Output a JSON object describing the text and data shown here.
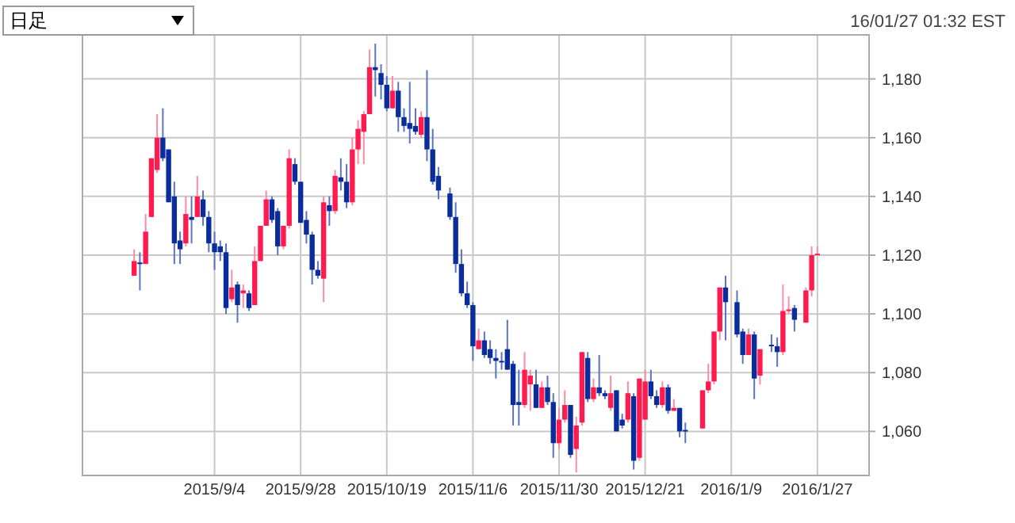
{
  "chart_data": {
    "type": "candlestick",
    "annotations": [
      "日足",
      "16/01/27 01:32 EST"
    ],
    "categories": [
      null,
      null,
      null,
      null,
      null,
      null,
      null,
      null,
      null,
      null,
      null,
      null,
      null,
      null,
      "2015/9/4",
      null,
      null,
      null,
      null,
      null,
      null,
      null,
      null,
      null,
      null,
      null,
      null,
      null,
      null,
      "2015/9/28",
      null,
      null,
      null,
      null,
      null,
      null,
      null,
      null,
      null,
      null,
      null,
      null,
      null,
      null,
      "2015/10/19",
      null,
      null,
      null,
      null,
      null,
      null,
      null,
      null,
      null,
      null,
      null,
      null,
      null,
      null,
      "2015/11/6",
      null,
      null,
      null,
      null,
      null,
      null,
      null,
      null,
      null,
      null,
      null,
      null,
      null,
      null,
      "2015/11/30",
      null,
      null,
      null,
      null,
      null,
      null,
      null,
      null,
      null,
      null,
      null,
      null,
      null,
      null,
      "2015/12/21",
      null,
      null,
      null,
      null,
      null,
      null,
      null,
      null,
      null,
      null,
      null,
      null,
      null,
      null,
      "2016/1/9",
      null,
      null,
      null,
      null,
      null,
      null,
      null,
      null,
      null,
      null,
      null,
      null,
      null,
      null,
      "2016/1/27"
    ],
    "ohlc": [
      [
        1113,
        1122,
        1113,
        1118
      ],
      [
        1117.5,
        1121,
        1108,
        1117
      ],
      [
        1117,
        1134,
        1117,
        1128
      ],
      [
        1133,
        1153,
        1133,
        1153
      ],
      [
        1149,
        1168,
        1148,
        1160
      ],
      [
        1160,
        1170,
        1152,
        1153
      ],
      [
        1156,
        1156,
        1138,
        1138
      ],
      [
        1140,
        1145,
        1117,
        1124
      ],
      [
        1125,
        1128,
        1117,
        1122
      ],
      [
        1124,
        1140,
        1123,
        1134
      ],
      [
        1133,
        1140,
        1124,
        1132
      ],
      [
        1133,
        1147,
        1133,
        1140
      ],
      [
        1139,
        1142,
        1130,
        1133
      ],
      [
        1133,
        1135,
        1121,
        1124
      ],
      [
        1124,
        1128,
        1115,
        1121
      ],
      [
        1123,
        1125,
        1118,
        1121
      ],
      [
        1121,
        1124,
        1100,
        1102
      ],
      [
        1105,
        1115,
        1104,
        1109
      ],
      [
        1110,
        1111,
        1097,
        1103
      ],
      [
        1107,
        1110,
        1102,
        1108
      ],
      [
        1107,
        1108,
        1101,
        1102
      ],
      [
        1103,
        1123,
        1103,
        1118
      ],
      [
        1118,
        1130,
        1118,
        1130
      ],
      [
        1130,
        1142,
        1130,
        1139
      ],
      [
        1139,
        1140,
        1131,
        1132
      ],
      [
        1135,
        1136,
        1120,
        1123
      ],
      [
        1123,
        1130,
        1122,
        1130
      ],
      [
        1130,
        1156,
        1129,
        1153
      ],
      [
        1151,
        1153,
        1144,
        1145
      ],
      [
        1145,
        1145,
        1131,
        1131
      ],
      [
        1132,
        1135,
        1124,
        1127
      ],
      [
        1127,
        1128,
        1110,
        1115
      ],
      [
        1115,
        1118,
        1112,
        1113
      ],
      [
        1112,
        1140,
        1104,
        1138
      ],
      [
        1137,
        1140,
        1130,
        1135
      ],
      [
        1135,
        1149,
        1134,
        1147
      ],
      [
        1146.5,
        1153,
        1142,
        1145
      ],
      [
        1145,
        1151,
        1136,
        1138
      ],
      [
        1138,
        1160,
        1137,
        1156
      ],
      [
        1156,
        1166,
        1151,
        1163
      ],
      [
        1162,
        1169,
        1151,
        1168
      ],
      [
        1168,
        1190,
        1168,
        1184
      ],
      [
        1184,
        1192,
        1174,
        1183
      ],
      [
        1182,
        1185,
        1173,
        1178
      ],
      [
        1178,
        1181,
        1169,
        1170
      ],
      [
        1170,
        1181,
        1170,
        1176
      ],
      [
        1176,
        1179,
        1162,
        1167
      ],
      [
        1167,
        1170,
        1162,
        1164
      ],
      [
        1165,
        1179,
        1158,
        1163
      ],
      [
        1164,
        1170,
        1161,
        1162
      ],
      [
        1161,
        1169,
        1160,
        1167
      ],
      [
        1167,
        1183,
        1152,
        1156
      ],
      [
        1156,
        1163,
        1144,
        1145
      ],
      [
        1147,
        1150,
        1139,
        1142
      ],
      null,
      [
        1141,
        1143,
        1132,
        1133
      ],
      [
        1133,
        1138,
        1114,
        1117
      ],
      [
        1117,
        1122,
        1106,
        1107
      ],
      [
        1107,
        1111,
        1102,
        1103
      ],
      [
        1103,
        1104,
        1084,
        1089
      ],
      [
        1088,
        1095,
        1088,
        1091
      ],
      [
        1091,
        1094,
        1085,
        1086
      ],
      [
        1088,
        1091,
        1083,
        1085
      ],
      [
        1085,
        1088,
        1078,
        1084
      ],
      [
        1084,
        1087,
        1081,
        1083.5
      ],
      [
        1088,
        1098,
        1081,
        1081
      ],
      [
        1083,
        1084,
        1062,
        1069
      ],
      [
        1070,
        1081,
        1062,
        1069
      ],
      [
        1069,
        1087,
        1068,
        1081
      ],
      [
        1076,
        1081,
        1067,
        1079
      ],
      [
        1076,
        1081,
        1068,
        1068
      ],
      [
        1068,
        1077,
        1068,
        1075
      ],
      [
        1075,
        1079,
        1069,
        1070
      ],
      [
        1070,
        1073,
        1051,
        1056
      ],
      [
        1056,
        1068,
        1054,
        1064
      ],
      [
        1064,
        1074,
        1063,
        1069
      ],
      [
        1069,
        1069,
        1051,
        1052
      ],
      [
        1054,
        1065,
        1046,
        1062
      ],
      [
        1063,
        1087,
        1062,
        1087
      ],
      [
        1085,
        1087,
        1070,
        1071
      ],
      [
        1071,
        1078,
        1070,
        1075
      ],
      [
        1075,
        1086,
        1072,
        1073
      ],
      [
        1073,
        1074,
        1071,
        1072
      ],
      [
        1068,
        1079,
        1067,
        1073
      ],
      [
        1074,
        1074,
        1060,
        1060
      ],
      [
        1064,
        1066,
        1061,
        1062
      ],
      [
        1064,
        1077,
        1063,
        1073
      ],
      [
        1072,
        1073,
        1047,
        1050
      ],
      [
        1051,
        1078,
        1050,
        1078
      ],
      [
        1064,
        1081,
        1064,
        1077
      ],
      [
        1077,
        1081,
        1071,
        1072
      ],
      [
        1072,
        1074,
        1068,
        1069
      ],
      [
        1069,
        1077,
        1068,
        1075
      ],
      [
        1075,
        1076,
        1066,
        1067
      ],
      [
        1067,
        1071,
        1067,
        1068
      ],
      [
        1068,
        1068,
        1058,
        1060
      ],
      [
        1060.5,
        1063,
        1056,
        1060
      ],
      null,
      null,
      [
        1061,
        1074,
        1061,
        1074
      ],
      [
        1074,
        1083,
        1073,
        1077
      ],
      [
        1077,
        1094,
        1076,
        1094
      ],
      [
        1094,
        1109,
        1091,
        1109
      ],
      [
        1109,
        1113,
        1091,
        1104
      ],
      null,
      [
        1104,
        1108,
        1092,
        1093
      ],
      [
        1094,
        1095,
        1083,
        1086
      ],
      [
        1086,
        1095,
        1086,
        1093
      ],
      [
        1093,
        1094,
        1071,
        1078
      ],
      [
        1079,
        1088,
        1076,
        1088
      ],
      null,
      [
        1089.5,
        1093,
        1087,
        1089
      ],
      [
        1089,
        1092,
        1082,
        1087
      ],
      [
        1087,
        1110,
        1086,
        1101
      ],
      [
        1101,
        1106,
        1100,
        1101.5
      ],
      [
        1102,
        1103,
        1094,
        1098
      ],
      null,
      [
        1097,
        1109,
        1097,
        1108
      ],
      [
        1108,
        1123,
        1106,
        1120
      ],
      [
        1120,
        1123,
        1120,
        1120.5
      ]
    ],
    "ylim": [
      1045,
      1195
    ],
    "yticks": [
      {
        "value": 1060,
        "label": "1,060"
      },
      {
        "value": 1080,
        "label": "1,080"
      },
      {
        "value": 1100,
        "label": "1,100"
      },
      {
        "value": 1120,
        "label": "1,120"
      },
      {
        "value": 1140,
        "label": "1,140"
      },
      {
        "value": 1160,
        "label": "1,160"
      },
      {
        "value": 1180,
        "label": "1,180"
      }
    ],
    "grid": true
  }
}
